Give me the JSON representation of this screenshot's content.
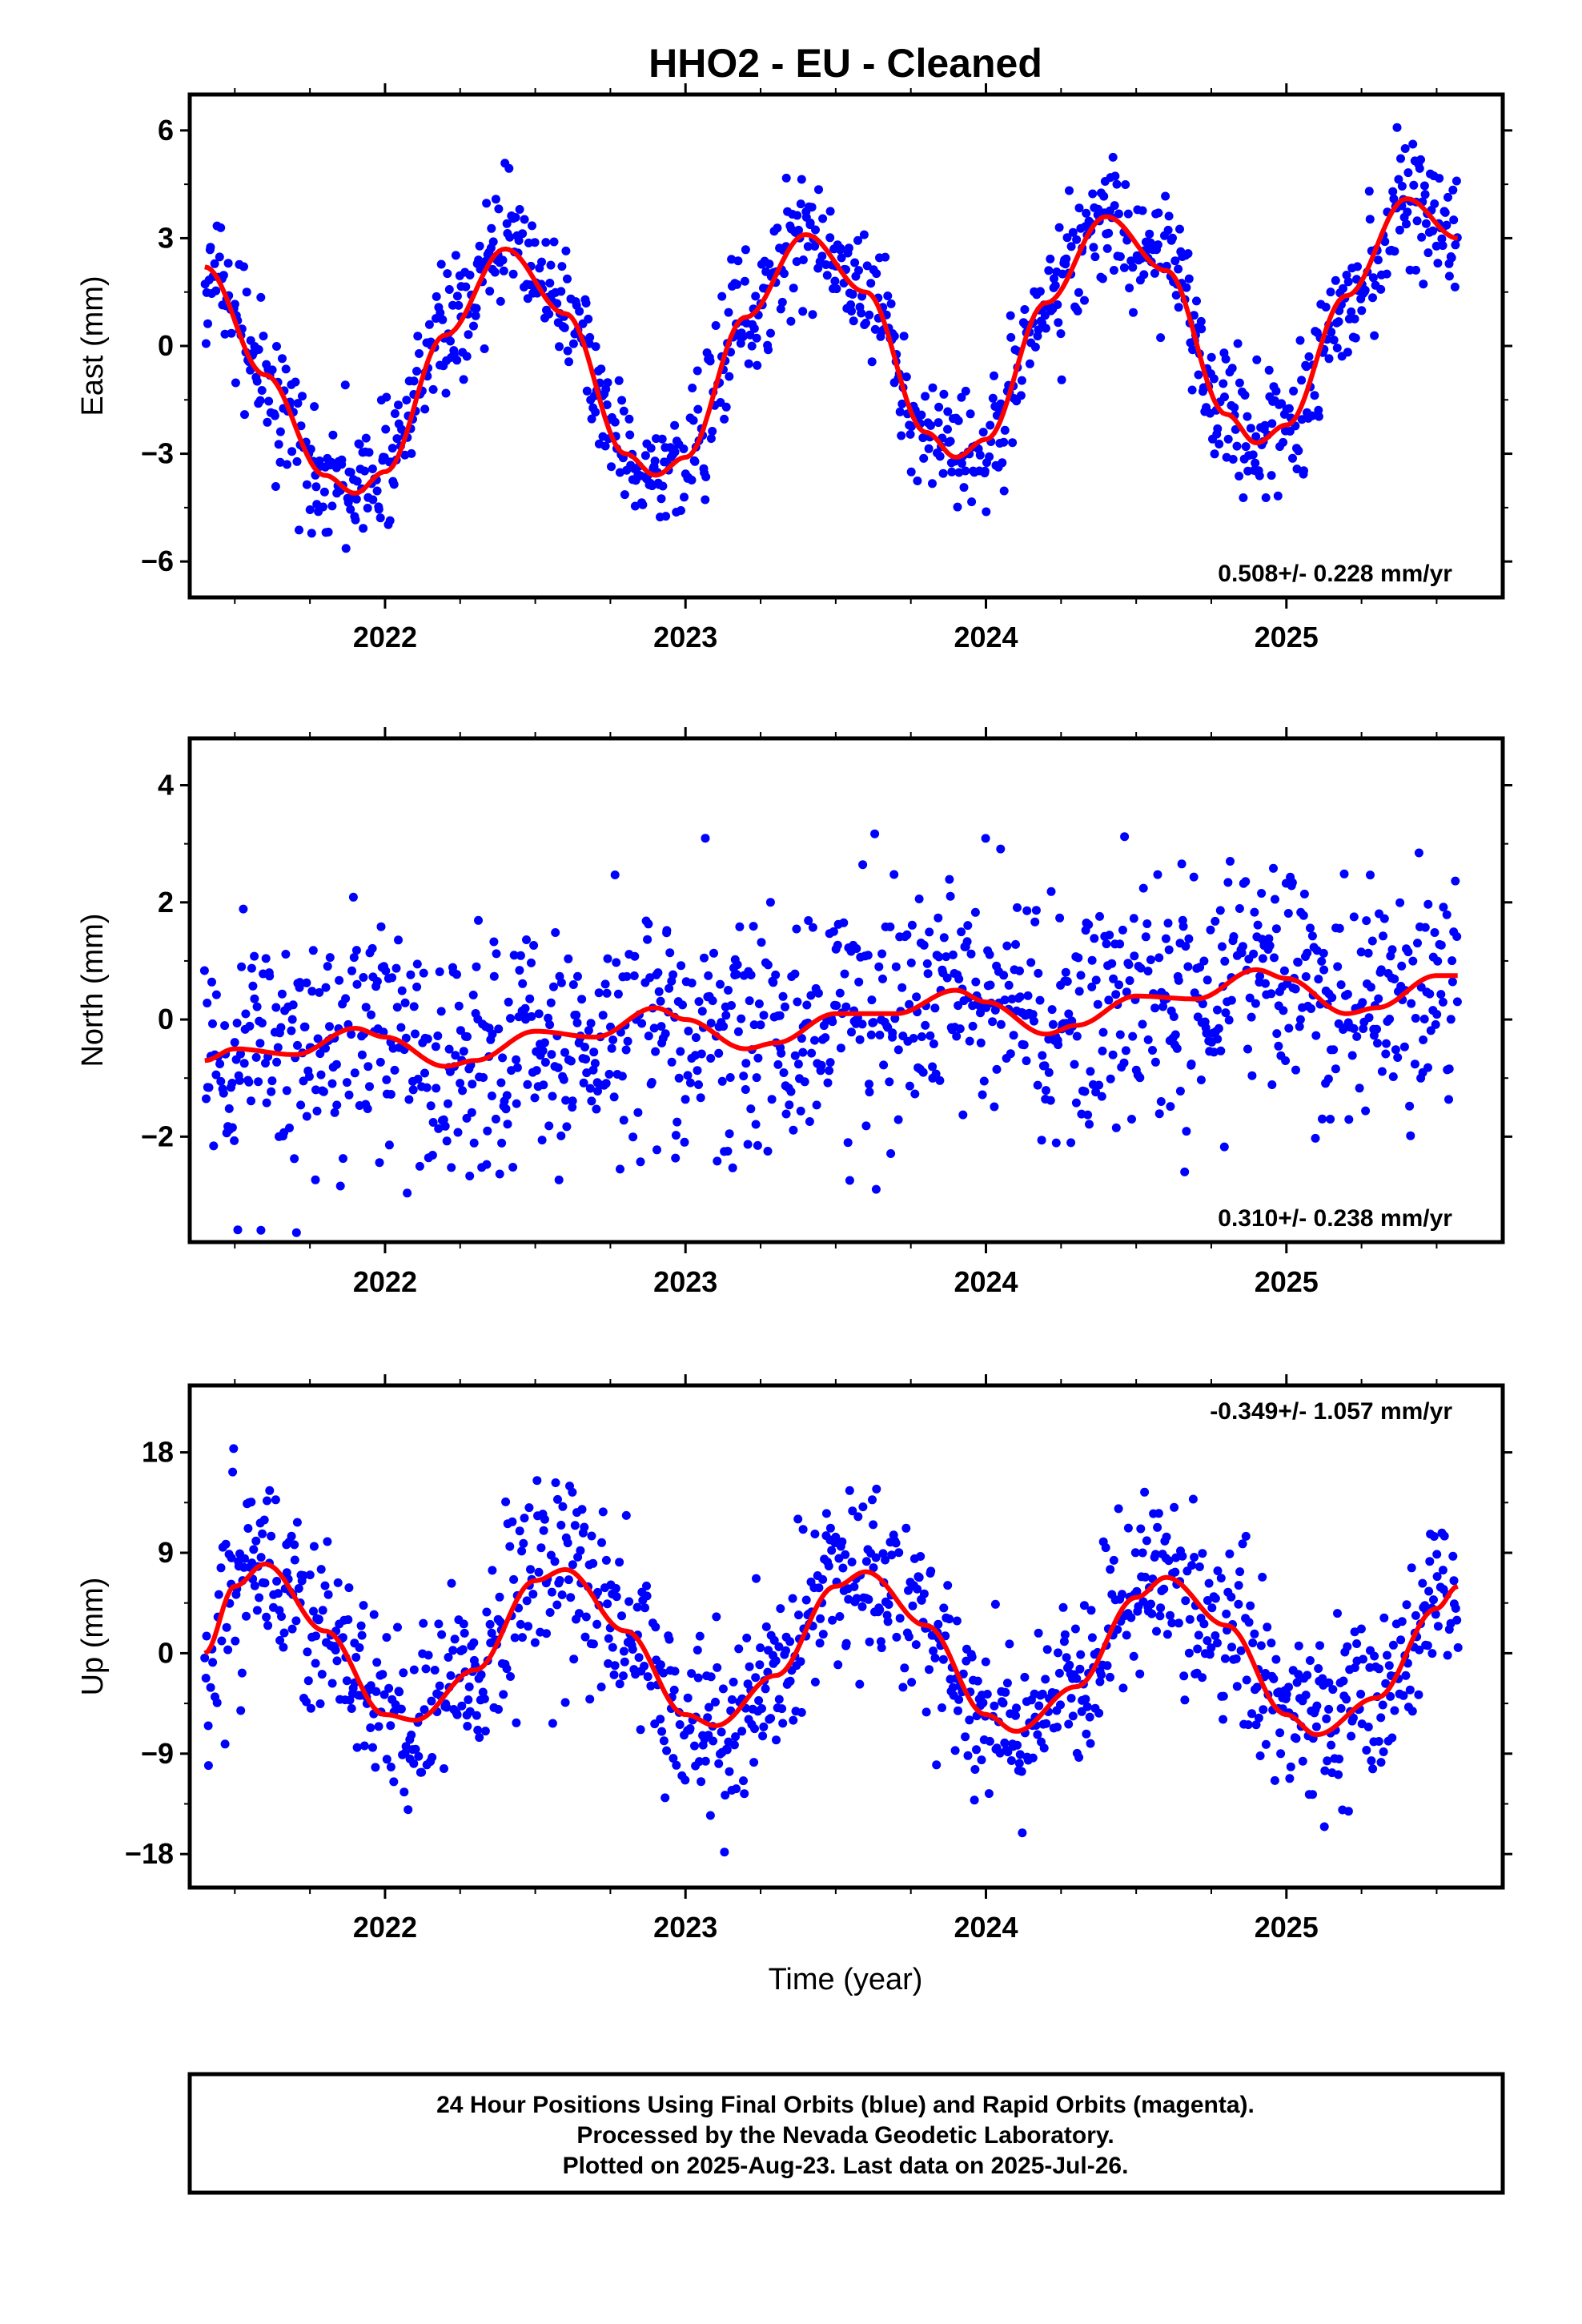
{
  "title": "HHO2  - EU - Cleaned",
  "colors": {
    "points": "#0000ff",
    "fit": "#ff0000",
    "axes": "#000000"
  },
  "chart_data": [
    {
      "type": "scatter",
      "id": "east",
      "ylabel": "East (mm)",
      "xlim": [
        2021.35,
        2025.72
      ],
      "ylim": [
        -7,
        7
      ],
      "yticks": [
        -6,
        -3,
        0,
        3,
        6
      ],
      "yticklabels": [
        "−6",
        "−3",
        "0",
        "3",
        "6"
      ],
      "xticks": [
        2022,
        2023,
        2024,
        2025
      ],
      "xticklabels": [
        "2022",
        "2023",
        "2024",
        "2025"
      ],
      "rate_label": "0.508+/- 0.228 mm/yr",
      "rate_position": "bottom-right",
      "series": [
        {
          "kind": "scatter",
          "x_range": [
            2021.4,
            2025.57
          ],
          "spread": 0.9,
          "description": "24 Hour Positions (blue)"
        },
        {
          "kind": "line",
          "x": [
            2021.4,
            2021.6,
            2021.8,
            2021.9,
            2022.0,
            2022.2,
            2022.4,
            2022.6,
            2022.8,
            2022.9,
            2023.0,
            2023.2,
            2023.4,
            2023.6,
            2023.8,
            2023.9,
            2024.0,
            2024.2,
            2024.4,
            2024.6,
            2024.8,
            2024.9,
            2025.0,
            2025.2,
            2025.4,
            2025.57
          ],
          "y": [
            2.2,
            -0.8,
            -3.6,
            -4.1,
            -3.5,
            0.3,
            2.7,
            0.9,
            -3.0,
            -3.6,
            -3.1,
            0.8,
            3.1,
            1.5,
            -2.4,
            -3.1,
            -2.6,
            1.2,
            3.6,
            2.1,
            -1.9,
            -2.7,
            -2.2,
            1.4,
            4.1,
            3.0
          ]
        }
      ]
    },
    {
      "type": "scatter",
      "id": "north",
      "ylabel": "North (mm)",
      "xlim": [
        2021.35,
        2025.72
      ],
      "ylim": [
        -3.8,
        4.8
      ],
      "yticks": [
        -2,
        0,
        2,
        4
      ],
      "yticklabels": [
        "−2",
        "0",
        "2",
        "4"
      ],
      "xticks": [
        2022,
        2023,
        2024,
        2025
      ],
      "xticklabels": [
        "2022",
        "2023",
        "2024",
        "2025"
      ],
      "rate_label": "0.310+/- 0.238 mm/yr",
      "rate_position": "bottom-right",
      "series": [
        {
          "kind": "scatter",
          "x_range": [
            2021.4,
            2025.57
          ],
          "spread": 1.0,
          "description": "24 Hour Positions (blue)"
        },
        {
          "kind": "line",
          "x": [
            2021.4,
            2021.5,
            2021.7,
            2021.9,
            2022.0,
            2022.2,
            2022.3,
            2022.5,
            2022.7,
            2022.9,
            2023.0,
            2023.2,
            2023.3,
            2023.5,
            2023.7,
            2023.9,
            2024.0,
            2024.2,
            2024.3,
            2024.5,
            2024.7,
            2024.9,
            2025.0,
            2025.2,
            2025.3,
            2025.5,
            2025.57
          ],
          "y": [
            -0.7,
            -0.5,
            -0.6,
            -0.15,
            -0.3,
            -0.8,
            -0.7,
            -0.2,
            -0.3,
            0.2,
            0.0,
            -0.5,
            -0.4,
            0.1,
            0.1,
            0.5,
            0.3,
            -0.25,
            -0.1,
            0.4,
            0.35,
            0.85,
            0.7,
            0.1,
            0.2,
            0.75,
            0.75
          ]
        }
      ]
    },
    {
      "type": "scatter",
      "id": "up",
      "ylabel": "Up (mm)",
      "xlabel": "Time (year)",
      "xlim": [
        2021.35,
        2025.72
      ],
      "ylim": [
        -21,
        24
      ],
      "yticks": [
        -18,
        -9,
        0,
        9,
        18
      ],
      "yticklabels": [
        "−18",
        "−9",
        "0",
        "9",
        "18"
      ],
      "xticks": [
        2022,
        2023,
        2024,
        2025
      ],
      "xticklabels": [
        "2022",
        "2023",
        "2024",
        "2025"
      ],
      "rate_label": "-0.349+/- 1.057 mm/yr",
      "rate_position": "top-right",
      "series": [
        {
          "kind": "scatter",
          "x_range": [
            2021.4,
            2025.57
          ],
          "spread": 4.0,
          "description": "24 Hour Positions (blue)"
        },
        {
          "kind": "line",
          "x": [
            2021.4,
            2021.5,
            2021.6,
            2021.8,
            2022.0,
            2022.1,
            2022.3,
            2022.5,
            2022.6,
            2022.8,
            2023.0,
            2023.1,
            2023.3,
            2023.5,
            2023.6,
            2023.8,
            2024.0,
            2024.1,
            2024.3,
            2024.5,
            2024.6,
            2024.8,
            2025.0,
            2025.1,
            2025.3,
            2025.5,
            2025.57
          ],
          "y": [
            0.0,
            6.0,
            8.0,
            2.0,
            -5.5,
            -6.0,
            -1.5,
            6.5,
            7.5,
            2.0,
            -5.5,
            -6.5,
            -2.0,
            6.0,
            7.3,
            2.5,
            -5.5,
            -7.0,
            -3.0,
            5.0,
            6.8,
            2.5,
            -5.5,
            -7.3,
            -4.0,
            4.0,
            6.0
          ]
        }
      ]
    }
  ],
  "footer": {
    "line1": "24 Hour Positions Using Final Orbits (blue) and Rapid Orbits (magenta).",
    "line2": "Processed by the Nevada Geodetic Laboratory.",
    "line3": "Plotted on 2025-Aug-23. Last data on 2025-Jul-26."
  }
}
